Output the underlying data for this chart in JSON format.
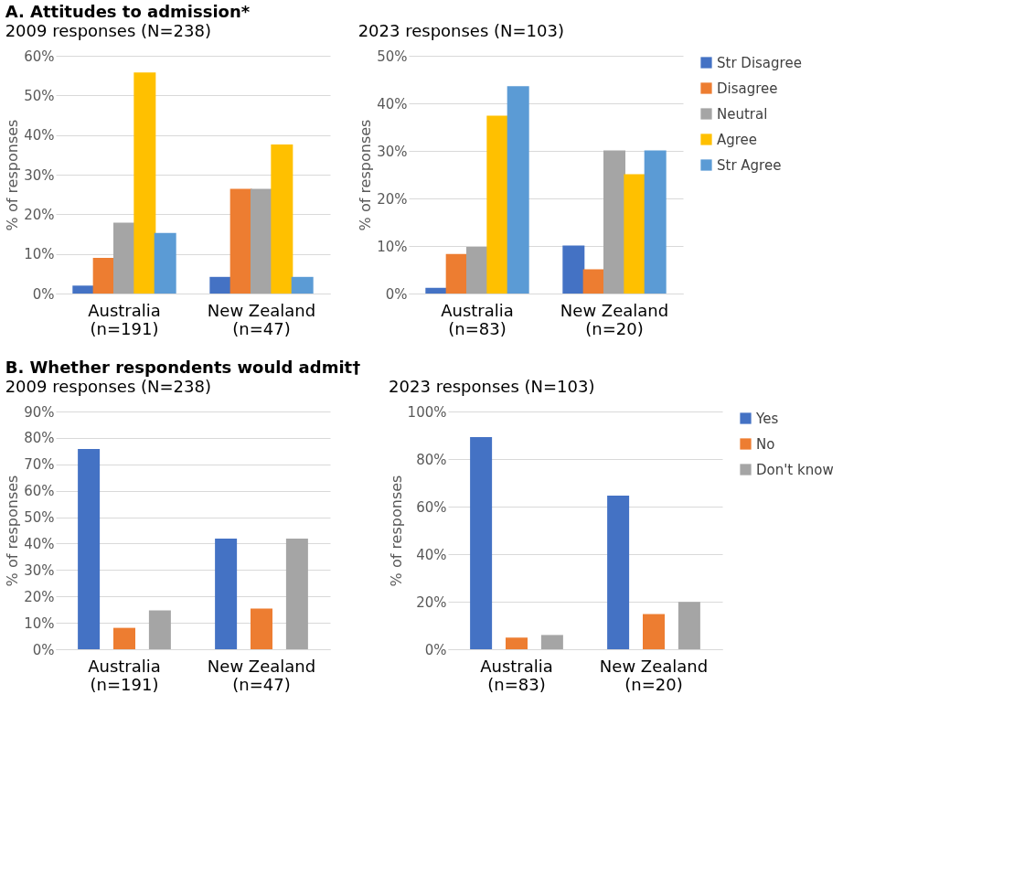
{
  "chart_data": [
    {
      "type": "bar",
      "title": "A. Attitudes to admission*",
      "subtitle": "2009 responses (N=238)",
      "ylabel": "% of responses",
      "categories": [
        "Australia\n(n=191)",
        "New Zealand\n(n=47)"
      ],
      "series": [
        {
          "color": "#4472c4",
          "values": [
            2.0,
            4.2
          ]
        },
        {
          "color": "#ed7d31",
          "values": [
            9.0,
            26.4
          ]
        },
        {
          "color": "#a5a5a5",
          "values": [
            17.9,
            26.4
          ]
        },
        {
          "color": "#ffc000",
          "values": [
            55.8,
            37.6
          ]
        },
        {
          "color": "#5b9bd5",
          "values": [
            15.3,
            4.2
          ]
        }
      ],
      "ylim": [
        0,
        60
      ],
      "yticks": [
        {
          "value": 0,
          "label": "0%"
        },
        {
          "value": 10,
          "label": "10%"
        },
        {
          "value": 20,
          "label": "20%"
        },
        {
          "value": 30,
          "label": "30%"
        },
        {
          "value": 40,
          "label": "40%"
        },
        {
          "value": 50,
          "label": "50%"
        },
        {
          "value": 60,
          "label": "60%"
        }
      ],
      "grid": "y",
      "legend": false
    },
    {
      "type": "bar",
      "subtitle": "2023 responses (N=103)",
      "ylabel": "% of responses",
      "categories": [
        "Australia\n(n=83)",
        "New Zealand\n(n=20)"
      ],
      "series": [
        {
          "name": "Str Disagree",
          "color": "#4472c4",
          "values": [
            1.2,
            10.1
          ]
        },
        {
          "name": "Disagree",
          "color": "#ed7d31",
          "values": [
            8.3,
            5.1
          ]
        },
        {
          "name": "Neutral",
          "color": "#a5a5a5",
          "values": [
            9.8,
            30.1
          ]
        },
        {
          "name": "Agree",
          "color": "#ffc000",
          "values": [
            37.4,
            25.1
          ]
        },
        {
          "name": "Str Agree",
          "color": "#5b9bd5",
          "values": [
            43.6,
            30.1
          ]
        }
      ],
      "ylim": [
        0,
        50
      ],
      "yticks": [
        {
          "value": 0,
          "label": "0%"
        },
        {
          "value": 10,
          "label": "10%"
        },
        {
          "value": 20,
          "label": "20%"
        },
        {
          "value": 30,
          "label": "30%"
        },
        {
          "value": 40,
          "label": "40%"
        },
        {
          "value": 50,
          "label": "50%"
        }
      ],
      "grid": "y",
      "legend": "right"
    },
    {
      "type": "bar",
      "title": "B. Whether respondents would admit†",
      "subtitle": "2009 responses (N=238)",
      "ylabel": "% of responses",
      "categories": [
        "Australia\n(n=191)",
        "New Zealand\n(n=47)"
      ],
      "series": [
        {
          "color": "#4472c4",
          "values": [
            75.8,
            41.9
          ]
        },
        {
          "color": "#ed7d31",
          "values": [
            8.1,
            15.4
          ]
        },
        {
          "color": "#a5a5a5",
          "values": [
            14.7,
            41.9
          ]
        }
      ],
      "ylim": [
        0,
        90
      ],
      "yticks": [
        {
          "value": 0,
          "label": "0%"
        },
        {
          "value": 10,
          "label": "10%"
        },
        {
          "value": 20,
          "label": "20%"
        },
        {
          "value": 30,
          "label": "30%"
        },
        {
          "value": 40,
          "label": "40%"
        },
        {
          "value": 50,
          "label": "50%"
        },
        {
          "value": 60,
          "label": "60%"
        },
        {
          "value": 70,
          "label": "70%"
        },
        {
          "value": 80,
          "label": "80%"
        },
        {
          "value": 90,
          "label": "90%"
        }
      ],
      "grid": "y",
      "legend": false
    },
    {
      "type": "bar",
      "subtitle": "2023 responses (N=103)",
      "ylabel": "% of responses",
      "categories": [
        "Australia\n(n=83)",
        "New Zealand\n(n=20)"
      ],
      "series": [
        {
          "name": "Yes",
          "color": "#4472c4",
          "values": [
            89.2,
            64.6
          ]
        },
        {
          "name": "No",
          "color": "#ed7d31",
          "values": [
            4.9,
            14.8
          ]
        },
        {
          "name": "Don't know",
          "color": "#a5a5a5",
          "values": [
            6.0,
            19.9
          ]
        }
      ],
      "ylim": [
        0,
        100
      ],
      "yticks": [
        {
          "value": 0,
          "label": "0%"
        },
        {
          "value": 20,
          "label": "20%"
        },
        {
          "value": 40,
          "label": "40%"
        },
        {
          "value": 60,
          "label": "60%"
        },
        {
          "value": 80,
          "label": "80%"
        },
        {
          "value": 100,
          "label": "100%"
        }
      ],
      "grid": "y",
      "legend": "right"
    }
  ]
}
